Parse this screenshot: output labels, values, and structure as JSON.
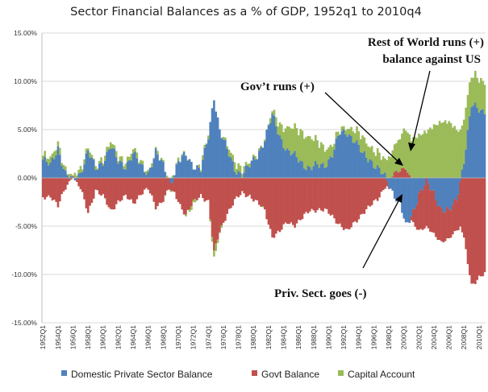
{
  "chart_data": {
    "type": "bar",
    "stacked": true,
    "title": "Sector Financial Balances as a % of GDP, 1952q1 to 2010q4",
    "xlabel": "",
    "ylabel": "",
    "ylim": [
      -15,
      15
    ],
    "y_ticks": [
      "15.00%",
      "10.00%",
      "5.00%",
      "0.00%",
      "-5.00%",
      "-10.00%",
      "-15.00%"
    ],
    "x_ticks": [
      "1952Q1",
      "1954Q1",
      "1956Q1",
      "1958Q1",
      "1960Q1",
      "1962Q1",
      "1964Q1",
      "1966Q1",
      "1968Q1",
      "1970Q1",
      "1972Q1",
      "1974Q1",
      "1976Q1",
      "1978Q1",
      "1980Q1",
      "1982Q1",
      "1984Q1",
      "1986Q1",
      "1988Q1",
      "1990Q1",
      "1992Q1",
      "1994Q1",
      "1996Q1",
      "1998Q1",
      "2000Q1",
      "2002Q1",
      "2004Q1",
      "2006Q1",
      "2008Q1",
      "2010Q1"
    ],
    "grid": true,
    "legend_position": "bottom",
    "colors": {
      "private": "#4f81bd",
      "govt": "#c0504d",
      "capital": "#9bbb59"
    },
    "series": [
      {
        "name": "Domestic Private Sector Balance",
        "key": "private"
      },
      {
        "name": "Govt Balance",
        "key": "govt"
      },
      {
        "name": "Capital Account",
        "key": "capital"
      }
    ],
    "x_range": [
      1952,
      2010.75
    ],
    "keyframes": {
      "private": [
        [
          1952,
          1.9
        ],
        [
          1953,
          1.2
        ],
        [
          1954,
          3.2
        ],
        [
          1955,
          0.4
        ],
        [
          1956,
          -0.4
        ],
        [
          1957,
          0.6
        ],
        [
          1958,
          2.8
        ],
        [
          1959,
          0.8
        ],
        [
          1960,
          1.8
        ],
        [
          1961,
          3.3
        ],
        [
          1962,
          1.6
        ],
        [
          1963,
          1.3
        ],
        [
          1964,
          2.5
        ],
        [
          1965,
          1.2
        ],
        [
          1966,
          0.6
        ],
        [
          1967,
          2.6
        ],
        [
          1968,
          1.2
        ],
        [
          1969,
          -0.5
        ],
        [
          1970,
          1.6
        ],
        [
          1971,
          2.3
        ],
        [
          1972,
          1.4
        ],
        [
          1973,
          0.8
        ],
        [
          1974,
          4.2
        ],
        [
          1974.75,
          8.5
        ],
        [
          1975.5,
          5.0
        ],
        [
          1976.5,
          2.8
        ],
        [
          1977.5,
          1.0
        ],
        [
          1978.5,
          0.4
        ],
        [
          1979.5,
          1.2
        ],
        [
          1980.5,
          2.4
        ],
        [
          1981.5,
          4.0
        ],
        [
          1982.5,
          6.4
        ],
        [
          1983.5,
          4.4
        ],
        [
          1984.5,
          2.8
        ],
        [
          1985.5,
          2.2
        ],
        [
          1986.5,
          1.6
        ],
        [
          1987.5,
          1.0
        ],
        [
          1988.5,
          1.2
        ],
        [
          1989.5,
          1.4
        ],
        [
          1990.5,
          2.4
        ],
        [
          1991.5,
          4.6
        ],
        [
          1992.5,
          4.8
        ],
        [
          1993.5,
          3.8
        ],
        [
          1994.5,
          2.4
        ],
        [
          1995.5,
          2.0
        ],
        [
          1996.5,
          1.0
        ],
        [
          1997.5,
          0.0
        ],
        [
          1998.5,
          -1.4
        ],
        [
          1999.5,
          -2.6
        ],
        [
          2000.25,
          -5.2
        ],
        [
          2001,
          -4.0
        ],
        [
          2002,
          -1.6
        ],
        [
          2003,
          -0.6
        ],
        [
          2004,
          -1.6
        ],
        [
          2005,
          -3.2
        ],
        [
          2006,
          -3.6
        ],
        [
          2007,
          -2.2
        ],
        [
          2008,
          1.8
        ],
        [
          2009,
          7.4
        ],
        [
          2010,
          7.2
        ],
        [
          2010.75,
          7.0
        ]
      ],
      "govt": [
        [
          1952,
          -2.0
        ],
        [
          1953,
          -1.8
        ],
        [
          1954,
          -3.0
        ],
        [
          1955,
          -1.0
        ],
        [
          1956,
          0.4
        ],
        [
          1957,
          -1.2
        ],
        [
          1958,
          -3.6
        ],
        [
          1959,
          -1.2
        ],
        [
          1960,
          -2.0
        ],
        [
          1961,
          -3.4
        ],
        [
          1962,
          -2.4
        ],
        [
          1963,
          -2.0
        ],
        [
          1964,
          -2.6
        ],
        [
          1965,
          -1.6
        ],
        [
          1966,
          -1.2
        ],
        [
          1967,
          -3.0
        ],
        [
          1968,
          -2.2
        ],
        [
          1969,
          -0.8
        ],
        [
          1970,
          -2.4
        ],
        [
          1971,
          -3.8
        ],
        [
          1972,
          -2.6
        ],
        [
          1973,
          -1.8
        ],
        [
          1974,
          -2.4
        ],
        [
          1974.75,
          -7.8
        ],
        [
          1975.5,
          -5.6
        ],
        [
          1976.5,
          -3.6
        ],
        [
          1977.5,
          -2.4
        ],
        [
          1978.5,
          -1.6
        ],
        [
          1979.5,
          -1.8
        ],
        [
          1980.5,
          -2.6
        ],
        [
          1981.5,
          -3.4
        ],
        [
          1982.5,
          -6.0
        ],
        [
          1983.5,
          -5.6
        ],
        [
          1984.5,
          -4.6
        ],
        [
          1985.5,
          -4.8
        ],
        [
          1986.5,
          -4.2
        ],
        [
          1987.5,
          -3.4
        ],
        [
          1988.5,
          -3.2
        ],
        [
          1989.5,
          -3.4
        ],
        [
          1990.5,
          -4.0
        ],
        [
          1991.5,
          -4.8
        ],
        [
          1992.5,
          -5.6
        ],
        [
          1993.5,
          -4.6
        ],
        [
          1994.5,
          -3.6
        ],
        [
          1995.5,
          -3.0
        ],
        [
          1996.5,
          -2.2
        ],
        [
          1997.5,
          -0.8
        ],
        [
          1998.5,
          0.2
        ],
        [
          1999.5,
          0.8
        ],
        [
          2000.25,
          1.2
        ],
        [
          2001,
          -0.4
        ],
        [
          2002,
          -3.8
        ],
        [
          2003,
          -4.6
        ],
        [
          2004,
          -4.2
        ],
        [
          2005,
          -3.4
        ],
        [
          2006,
          -2.8
        ],
        [
          2007,
          -3.2
        ],
        [
          2008,
          -6.4
        ],
        [
          2009,
          -11.0
        ],
        [
          2010,
          -10.4
        ],
        [
          2010.75,
          -10.0
        ]
      ],
      "capital": [
        [
          1952,
          0.4
        ],
        [
          1953,
          0.6
        ],
        [
          1954,
          0.6
        ],
        [
          1955,
          0.3
        ],
        [
          1956,
          0.2
        ],
        [
          1957,
          0.5
        ],
        [
          1958,
          0.4
        ],
        [
          1959,
          0.2
        ],
        [
          1960,
          0.4
        ],
        [
          1961,
          0.5
        ],
        [
          1962,
          0.4
        ],
        [
          1963,
          0.5
        ],
        [
          1964,
          0.5
        ],
        [
          1965,
          0.3
        ],
        [
          1966,
          0.2
        ],
        [
          1967,
          0.2
        ],
        [
          1968,
          0.1
        ],
        [
          1969,
          0.0
        ],
        [
          1970,
          0.2
        ],
        [
          1971,
          0.0
        ],
        [
          1972,
          -0.4
        ],
        [
          1973,
          0.4
        ],
        [
          1974,
          0.2
        ],
        [
          1974.75,
          -0.8
        ],
        [
          1975.5,
          -0.2
        ],
        [
          1976.5,
          0.4
        ],
        [
          1977.5,
          0.8
        ],
        [
          1978.5,
          0.6
        ],
        [
          1979.5,
          0.2
        ],
        [
          1980.5,
          0.2
        ],
        [
          1981.5,
          0.0
        ],
        [
          1982.5,
          0.4
        ],
        [
          1983.5,
          1.2
        ],
        [
          1984.5,
          2.4
        ],
        [
          1985.5,
          2.8
        ],
        [
          1986.5,
          3.2
        ],
        [
          1987.5,
          3.2
        ],
        [
          1988.5,
          2.4
        ],
        [
          1989.5,
          1.8
        ],
        [
          1990.5,
          1.0
        ],
        [
          1991.5,
          0.2
        ],
        [
          1992.5,
          0.6
        ],
        [
          1993.5,
          1.2
        ],
        [
          1994.5,
          1.6
        ],
        [
          1995.5,
          1.4
        ],
        [
          1996.5,
          1.6
        ],
        [
          1997.5,
          1.6
        ],
        [
          1998.5,
          2.6
        ],
        [
          1999.5,
          3.4
        ],
        [
          2000.25,
          4.2
        ],
        [
          2001,
          4.0
        ],
        [
          2002,
          4.4
        ],
        [
          2003,
          4.8
        ],
        [
          2004,
          5.4
        ],
        [
          2005,
          5.8
        ],
        [
          2006,
          5.8
        ],
        [
          2007,
          5.0
        ],
        [
          2008,
          4.6
        ],
        [
          2009,
          3.0
        ],
        [
          2010,
          3.2
        ],
        [
          2010.75,
          3.0
        ]
      ]
    },
    "annotations": [
      {
        "text": "Rest of World runs (+)",
        "line": 1
      },
      {
        "text": "balance against US",
        "line": 2
      },
      {
        "text": "Gov’t runs (+)"
      },
      {
        "text": "Priv. Sect. goes (-)"
      }
    ]
  }
}
